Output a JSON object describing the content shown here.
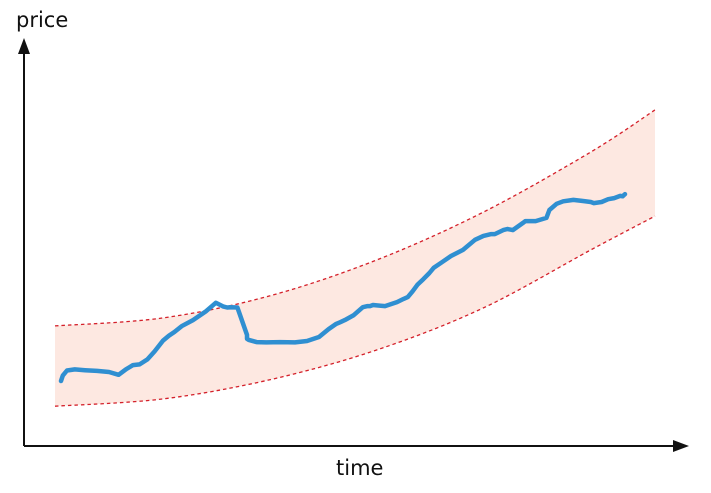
{
  "axes": {
    "y_label": "price",
    "x_label": "time"
  },
  "colors": {
    "band_fill": "#fde8e1",
    "band_edge": "#d4202a",
    "price_line": "#2f8fd1",
    "axis": "#111111"
  },
  "chart_data": {
    "type": "line",
    "xlabel": "time",
    "ylabel": "price",
    "grid": false,
    "legend": "none",
    "xlim": [
      0,
      100
    ],
    "ylim": [
      0,
      100
    ],
    "band": {
      "x": [
        0,
        17.9,
        35.7,
        53.6,
        71.4,
        89.3,
        100
      ],
      "upper": [
        31.7,
        33.9,
        40.0,
        50.0,
        63.3,
        80.0,
        91.7
      ],
      "lower": [
        9.4,
        11.4,
        16.7,
        25.0,
        36.7,
        52.8,
        62.2
      ]
    },
    "series": [
      {
        "x": [
          1.0,
          1.3,
          2.0,
          3.3,
          5.0,
          7.0,
          9.0,
          10.6,
          11.8,
          13.0,
          14.1,
          15.4,
          16.6,
          18.0,
          19.0,
          19.9,
          21.1,
          23.0,
          25.2,
          26.8,
          28.0,
          28.7,
          29.3,
          30.4,
          32.0,
          32.0,
          32.3,
          33.6,
          35.2,
          37.5,
          40.0,
          42.0,
          44.0,
          45.6,
          46.8,
          47.5,
          48.3,
          49.8,
          51.3,
          52.1,
          52.5,
          53.0,
          55.0,
          57.0,
          58.1,
          58.8,
          59.6,
          60.4,
          61.4,
          62.4,
          63.1,
          64.5,
          66.0,
          68.0,
          70.0,
          71.4,
          72.7,
          73.3,
          74.7,
          75.4,
          76.3,
          78.0,
          78.4,
          80.1,
          81.9,
          82.4,
          83.6,
          84.7,
          86.4,
          88.0,
          89.3,
          89.8,
          91.1,
          92.2,
          93.2,
          93.7,
          94.2,
          94.6,
          95.0
        ],
        "y": [
          16.4,
          17.9,
          19.3,
          19.6,
          19.4,
          19.2,
          18.9,
          18.1,
          19.6,
          20.8,
          21.0,
          22.4,
          24.6,
          27.6,
          29.0,
          30.0,
          31.6,
          33.3,
          35.8,
          38.1,
          37.1,
          36.8,
          36.9,
          36.8,
          29.2,
          28.1,
          27.8,
          27.2,
          27.1,
          27.2,
          27.1,
          27.5,
          28.6,
          30.8,
          32.2,
          32.7,
          33.3,
          34.7,
          36.9,
          37.2,
          37.2,
          37.5,
          37.2,
          38.3,
          39.2,
          39.7,
          41.3,
          43.1,
          44.7,
          46.4,
          47.8,
          49.4,
          51.1,
          52.8,
          55.6,
          56.7,
          57.2,
          57.2,
          58.3,
          58.6,
          58.3,
          60.3,
          60.8,
          60.8,
          61.7,
          63.9,
          65.6,
          66.3,
          66.7,
          66.4,
          66.1,
          65.8,
          66.1,
          66.9,
          67.2,
          67.5,
          67.8,
          67.7,
          68.3
        ]
      }
    ]
  }
}
